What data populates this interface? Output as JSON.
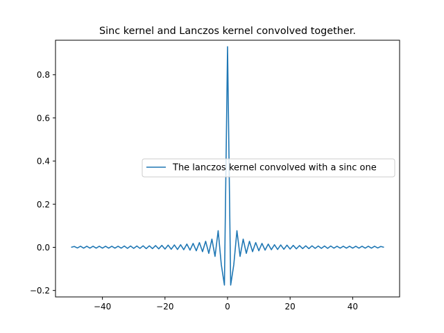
{
  "chart_data": {
    "type": "line",
    "title": "Sinc kernel and Lanczos kernel convolved together.",
    "xlabel": "",
    "ylabel": "",
    "xlim": [
      -55,
      55
    ],
    "ylim": [
      -0.23,
      0.96
    ],
    "x_ticks": [
      -40,
      -20,
      0,
      20,
      40
    ],
    "x_tick_labels": [
      "−40",
      "−20",
      "0",
      "20",
      "40"
    ],
    "y_ticks": [
      -0.2,
      0.0,
      0.2,
      0.4,
      0.6,
      0.8
    ],
    "y_tick_labels": [
      "−0.2",
      "0.0",
      "0.2",
      "0.4",
      "0.6",
      "0.8"
    ],
    "grid": false,
    "legend_position": "center-right",
    "series": [
      {
        "name": "The lanczos kernel convolved with a sinc one",
        "color": "#1f77b4",
        "points": [
          [
            -50,
            0.0
          ],
          [
            -49,
            0.004
          ],
          [
            -48,
            -0.003
          ],
          [
            -47,
            0.005
          ],
          [
            -46,
            -0.004
          ],
          [
            -45,
            0.005
          ],
          [
            -44,
            -0.004
          ],
          [
            -43,
            0.005
          ],
          [
            -42,
            -0.004
          ],
          [
            -41,
            0.005
          ],
          [
            -40,
            -0.004
          ],
          [
            -39,
            0.005
          ],
          [
            -38,
            -0.004
          ],
          [
            -37,
            0.005
          ],
          [
            -36,
            -0.004
          ],
          [
            -35,
            0.005
          ],
          [
            -34,
            -0.004
          ],
          [
            -33,
            0.006
          ],
          [
            -32,
            -0.005
          ],
          [
            -31,
            0.006
          ],
          [
            -30,
            -0.005
          ],
          [
            -29,
            0.006
          ],
          [
            -28,
            -0.005
          ],
          [
            -27,
            0.007
          ],
          [
            -26,
            -0.006
          ],
          [
            -25,
            0.007
          ],
          [
            -24,
            -0.006
          ],
          [
            -23,
            0.008
          ],
          [
            -22,
            -0.007
          ],
          [
            -21,
            0.009
          ],
          [
            -20,
            -0.008
          ],
          [
            -19,
            0.01
          ],
          [
            -18,
            -0.009
          ],
          [
            -17,
            0.011
          ],
          [
            -16,
            -0.01
          ],
          [
            -15,
            0.012
          ],
          [
            -14,
            -0.011
          ],
          [
            -13,
            0.015
          ],
          [
            -12,
            -0.013
          ],
          [
            -11,
            0.018
          ],
          [
            -10,
            -0.016
          ],
          [
            -9,
            0.022
          ],
          [
            -8,
            -0.02
          ],
          [
            -7,
            0.028
          ],
          [
            -6,
            -0.028
          ],
          [
            -5,
            0.038
          ],
          [
            -4,
            -0.042
          ],
          [
            -3,
            0.077
          ],
          [
            -2,
            -0.08
          ],
          [
            -1,
            -0.175
          ],
          [
            0,
            0.93
          ],
          [
            1,
            -0.175
          ],
          [
            2,
            -0.08
          ],
          [
            3,
            0.077
          ],
          [
            4,
            -0.042
          ],
          [
            5,
            0.038
          ],
          [
            6,
            -0.028
          ],
          [
            7,
            0.028
          ],
          [
            8,
            -0.02
          ],
          [
            9,
            0.022
          ],
          [
            10,
            -0.016
          ],
          [
            11,
            0.018
          ],
          [
            12,
            -0.013
          ],
          [
            13,
            0.015
          ],
          [
            14,
            -0.011
          ],
          [
            15,
            0.012
          ],
          [
            16,
            -0.01
          ],
          [
            17,
            0.011
          ],
          [
            18,
            -0.009
          ],
          [
            19,
            0.01
          ],
          [
            20,
            -0.008
          ],
          [
            21,
            0.009
          ],
          [
            22,
            -0.007
          ],
          [
            23,
            0.008
          ],
          [
            24,
            -0.006
          ],
          [
            25,
            0.007
          ],
          [
            26,
            -0.006
          ],
          [
            27,
            0.007
          ],
          [
            28,
            -0.005
          ],
          [
            29,
            0.006
          ],
          [
            30,
            -0.005
          ],
          [
            31,
            0.006
          ],
          [
            32,
            -0.005
          ],
          [
            33,
            0.006
          ],
          [
            34,
            -0.004
          ],
          [
            35,
            0.005
          ],
          [
            36,
            -0.004
          ],
          [
            37,
            0.005
          ],
          [
            38,
            -0.004
          ],
          [
            39,
            0.005
          ],
          [
            40,
            -0.004
          ],
          [
            41,
            0.005
          ],
          [
            42,
            -0.004
          ],
          [
            43,
            0.005
          ],
          [
            44,
            -0.004
          ],
          [
            45,
            0.005
          ],
          [
            46,
            -0.004
          ],
          [
            47,
            0.005
          ],
          [
            48,
            -0.003
          ],
          [
            49,
            0.004
          ],
          [
            50,
            0.0
          ]
        ]
      }
    ]
  }
}
